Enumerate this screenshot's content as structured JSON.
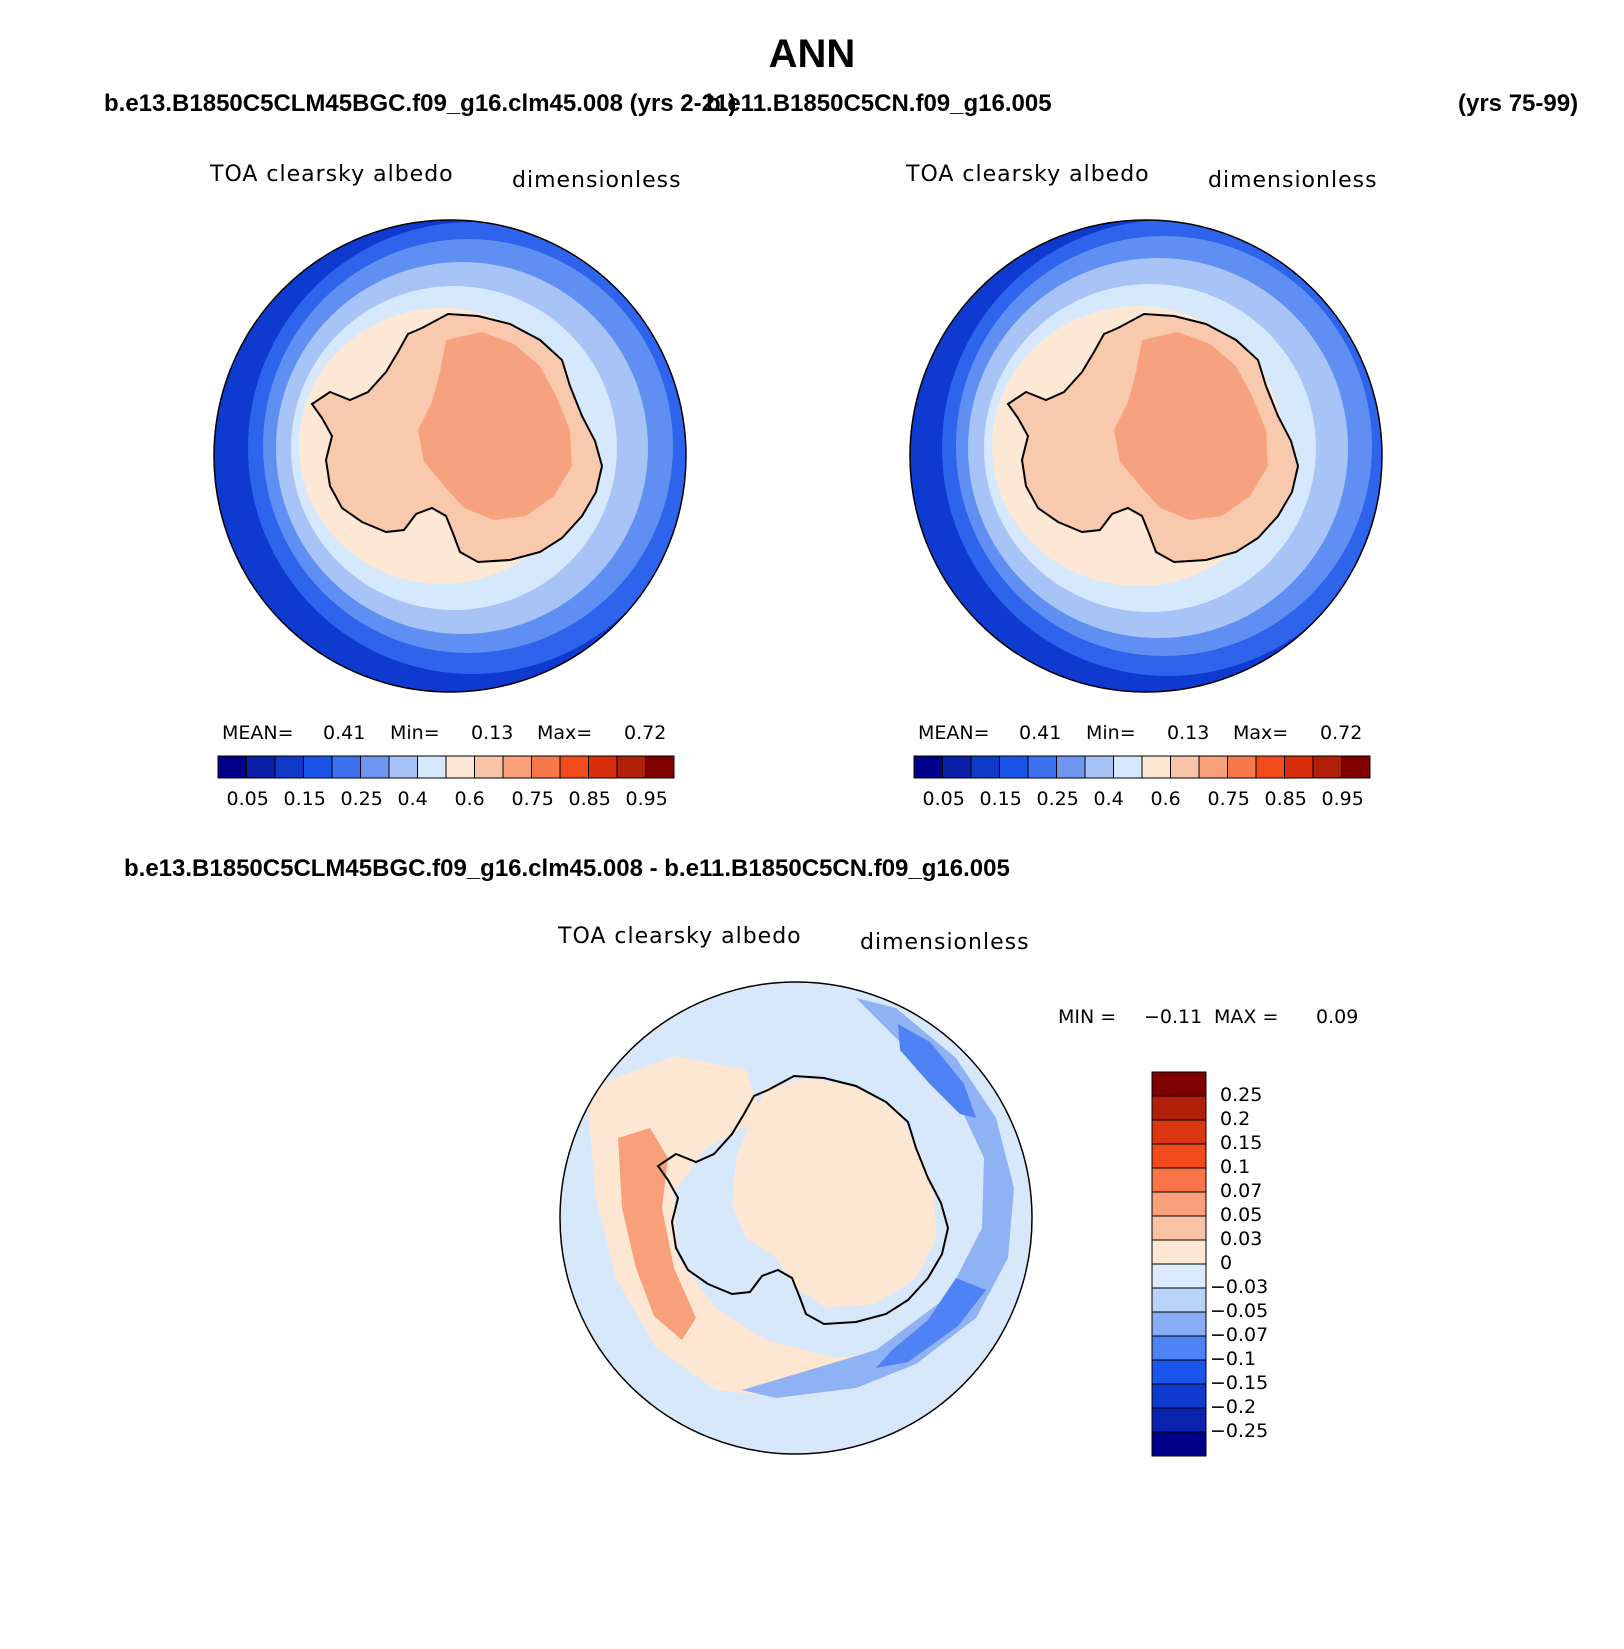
{
  "title": "ANN",
  "header": {
    "case_left": "b.e13.B1850C5CLM45BGC.f09_g16.clm45.008 (yrs 2-21)",
    "case_right": "b.e11.B1850C5CN.f09_g16.005",
    "years_right": "(yrs 75-99)"
  },
  "panels": [
    {
      "variable": "TOA clearsky albedo",
      "units": "dimensionless",
      "mean_label": "MEAN=",
      "mean_value": "0.41",
      "min_label": "Min=",
      "min_value": "0.13",
      "max_label": "Max=",
      "max_value": "0.72"
    },
    {
      "variable": "TOA clearsky albedo",
      "units": "dimensionless",
      "mean_label": "MEAN=",
      "mean_value": "0.41",
      "min_label": "Min=",
      "min_value": "0.13",
      "max_label": "Max=",
      "max_value": "0.72"
    }
  ],
  "diff_panel": {
    "case_label": "b.e13.B1850C5CLM45BGC.f09_g16.clm45.008 - b.e11.B1850C5CN.f09_g16.005",
    "variable": "TOA clearsky albedo",
    "units": "dimensionless",
    "min_label": "MIN =",
    "min_value": "−0.11",
    "max_label": "MAX =",
    "max_value": "0.09"
  },
  "abs_colorbar": {
    "colors": [
      "#00008b",
      "#0a1fa8",
      "#0f3ac8",
      "#1b55e8",
      "#3c72f0",
      "#6f97f2",
      "#a8c4f6",
      "#d6e8fb",
      "#fde8d6",
      "#f9c4a8",
      "#f7a07a",
      "#f7784a",
      "#f24c1d",
      "#d92e0c",
      "#b01f08",
      "#800000"
    ],
    "tick_labels": [
      "0.05",
      "0.15",
      "0.25",
      "0.4",
      "0.6",
      "0.75",
      "0.85",
      "0.95"
    ]
  },
  "diff_colorbar": {
    "colors": [
      "#00008b",
      "#0a22b0",
      "#0f3ad0",
      "#1b55ec",
      "#4f82f4",
      "#88adf5",
      "#b8d2f8",
      "#dbeafc",
      "#fde7d4",
      "#f8c3a5",
      "#f7a07a",
      "#f77547",
      "#f24c1d",
      "#dc3512",
      "#b01f08",
      "#800000"
    ],
    "tick_labels": [
      "0.25",
      "0.2",
      "0.15",
      "0.1",
      "0.07",
      "0.05",
      "0.03",
      "0",
      "−0.03",
      "−0.05",
      "−0.07",
      "−0.1",
      "−0.15",
      "−0.2",
      "−0.25"
    ]
  },
  "map_colors": {
    "abs_bands": [
      "#0f3ad0",
      "#2e63ec",
      "#5f8ff2",
      "#a8c4f6",
      "#d6e8fb",
      "#fde8d6"
    ],
    "antarctica_edge": "#f9c9ad",
    "antarctica_core": "#f7a27e",
    "diff_background": "#d8e8fb",
    "diff_positive": "#fde6d2",
    "diff_positive_strong": "#f7a07a",
    "diff_negative": "#8fb2f4",
    "diff_negative_strong": "#4f82f4"
  }
}
